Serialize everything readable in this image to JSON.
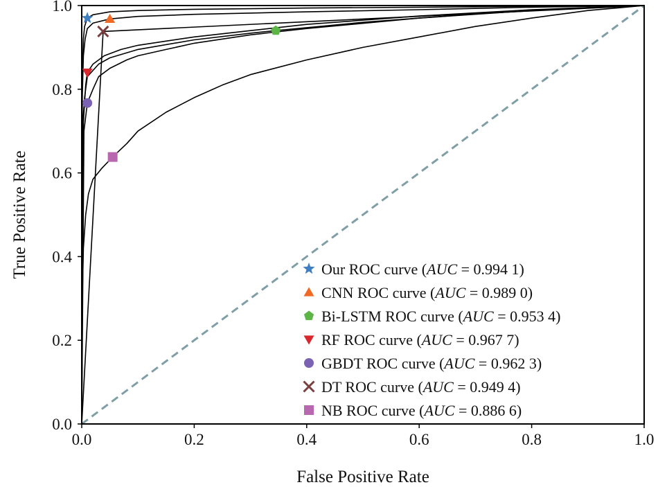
{
  "chart_data": {
    "type": "line",
    "title": "",
    "xlabel": "False Positive Rate",
    "ylabel": "True Positive Rate",
    "xlim": [
      0.0,
      1.0
    ],
    "ylim": [
      0.0,
      1.0
    ],
    "xticks": [
      0.0,
      0.2,
      0.4,
      0.6,
      0.8,
      1.0
    ],
    "yticks": [
      0.0,
      0.2,
      0.4,
      0.6,
      0.8,
      1.0
    ],
    "xtick_labels": [
      "0.0",
      "0.2",
      "0.4",
      "0.6",
      "0.8",
      "1.0"
    ],
    "ytick_labels": [
      "0.0",
      "0.2",
      "0.4",
      "0.6",
      "0.8",
      "1.0"
    ],
    "grid": false,
    "legend_position": "lower-right",
    "diagonal": {
      "name": "chance line",
      "x": [
        0,
        1
      ],
      "y": [
        0,
        1
      ],
      "style": "dashed",
      "color": "#7f9ea6"
    },
    "series": [
      {
        "name": "Our ROC curve",
        "label_prefix": "Our ROC curve (",
        "auc_symbol": "AUC",
        "auc_value": "= 0.994 1)",
        "marker": "star",
        "color": "#3f7fc1",
        "marker_point": [
          0.01,
          0.97
        ],
        "x": [
          0,
          0.001,
          0.003,
          0.005,
          0.01,
          0.02,
          0.05,
          0.1,
          0.2,
          0.4,
          0.6,
          0.8,
          1.0
        ],
        "y": [
          0,
          0.82,
          0.92,
          0.95,
          0.97,
          0.978,
          0.985,
          0.988,
          0.991,
          0.994,
          0.996,
          0.998,
          1.0
        ]
      },
      {
        "name": "CNN ROC curve",
        "label_prefix": "CNN ROC curve (",
        "auc_symbol": "AUC",
        "auc_value": "= 0.989 0)",
        "marker": "triangle-up",
        "color": "#f06a25",
        "marker_point": [
          0.05,
          0.968
        ],
        "x": [
          0,
          0.001,
          0.003,
          0.006,
          0.01,
          0.02,
          0.05,
          0.1,
          0.2,
          0.4,
          0.6,
          0.8,
          1.0
        ],
        "y": [
          0,
          0.78,
          0.88,
          0.92,
          0.945,
          0.958,
          0.968,
          0.974,
          0.979,
          0.985,
          0.99,
          0.996,
          1.0
        ]
      },
      {
        "name": "Bi-LSTM ROC curve",
        "label_prefix": "Bi-LSTM ROC curve (",
        "auc_symbol": "AUC",
        "auc_value": "= 0.953 4)",
        "marker": "pentagon",
        "color": "#5cb546",
        "marker_point": [
          0.345,
          0.94
        ],
        "x": [
          0,
          0.002,
          0.005,
          0.01,
          0.03,
          0.05,
          0.1,
          0.2,
          0.3,
          0.345,
          0.5,
          0.7,
          0.9,
          1.0
        ],
        "y": [
          0,
          0.72,
          0.78,
          0.83,
          0.86,
          0.875,
          0.895,
          0.918,
          0.934,
          0.94,
          0.96,
          0.98,
          0.995,
          1.0
        ]
      },
      {
        "name": "RF ROC curve",
        "label_prefix": "RF ROC curve (",
        "auc_symbol": "AUC",
        "auc_value": "= 0.967 7)",
        "marker": "triangle-down",
        "color": "#d8282e",
        "marker_point": [
          0.01,
          0.84
        ],
        "x": [
          0,
          0.003,
          0.007,
          0.01,
          0.02,
          0.04,
          0.07,
          0.1,
          0.15,
          0.2,
          0.3,
          0.4,
          0.6,
          0.8,
          1.0
        ],
        "y": [
          0,
          0.72,
          0.81,
          0.84,
          0.86,
          0.88,
          0.895,
          0.905,
          0.915,
          0.925,
          0.94,
          0.955,
          0.975,
          0.99,
          1.0
        ]
      },
      {
        "name": "GBDT ROC curve",
        "label_prefix": "GBDT ROC curve (",
        "auc_symbol": "AUC",
        "auc_value": "= 0.962 3)",
        "marker": "circle",
        "color": "#7b62b3",
        "marker_point": [
          0.01,
          0.767
        ],
        "x": [
          0,
          0.004,
          0.01,
          0.02,
          0.03,
          0.05,
          0.08,
          0.1,
          0.15,
          0.2,
          0.3,
          0.4,
          0.6,
          0.8,
          1.0
        ],
        "y": [
          0,
          0.7,
          0.767,
          0.8,
          0.83,
          0.85,
          0.87,
          0.88,
          0.895,
          0.91,
          0.93,
          0.945,
          0.97,
          0.988,
          1.0
        ]
      },
      {
        "name": "DT ROC curve",
        "label_prefix": "DT ROC curve (",
        "auc_symbol": "AUC",
        "auc_value": "= 0.949 4)",
        "marker": "x",
        "color": "#7a3e3e",
        "marker_point": [
          0.038,
          0.938
        ],
        "x": [
          0,
          0.038,
          1.0
        ],
        "y": [
          0,
          0.938,
          1.0
        ]
      },
      {
        "name": "NB ROC curve",
        "label_prefix": "NB ROC curve (",
        "auc_symbol": "AUC",
        "auc_value": "= 0.886 6)",
        "marker": "square",
        "color": "#b768ae",
        "marker_point": [
          0.055,
          0.638
        ],
        "x": [
          0,
          0.001,
          0.003,
          0.007,
          0.012,
          0.02,
          0.035,
          0.055,
          0.08,
          0.1,
          0.15,
          0.2,
          0.25,
          0.3,
          0.4,
          0.5,
          0.6,
          0.7,
          0.8,
          0.9,
          1.0
        ],
        "y": [
          0,
          0.3,
          0.42,
          0.5,
          0.55,
          0.585,
          0.61,
          0.638,
          0.67,
          0.7,
          0.745,
          0.78,
          0.81,
          0.835,
          0.87,
          0.9,
          0.925,
          0.95,
          0.97,
          0.988,
          1.0
        ]
      }
    ]
  }
}
